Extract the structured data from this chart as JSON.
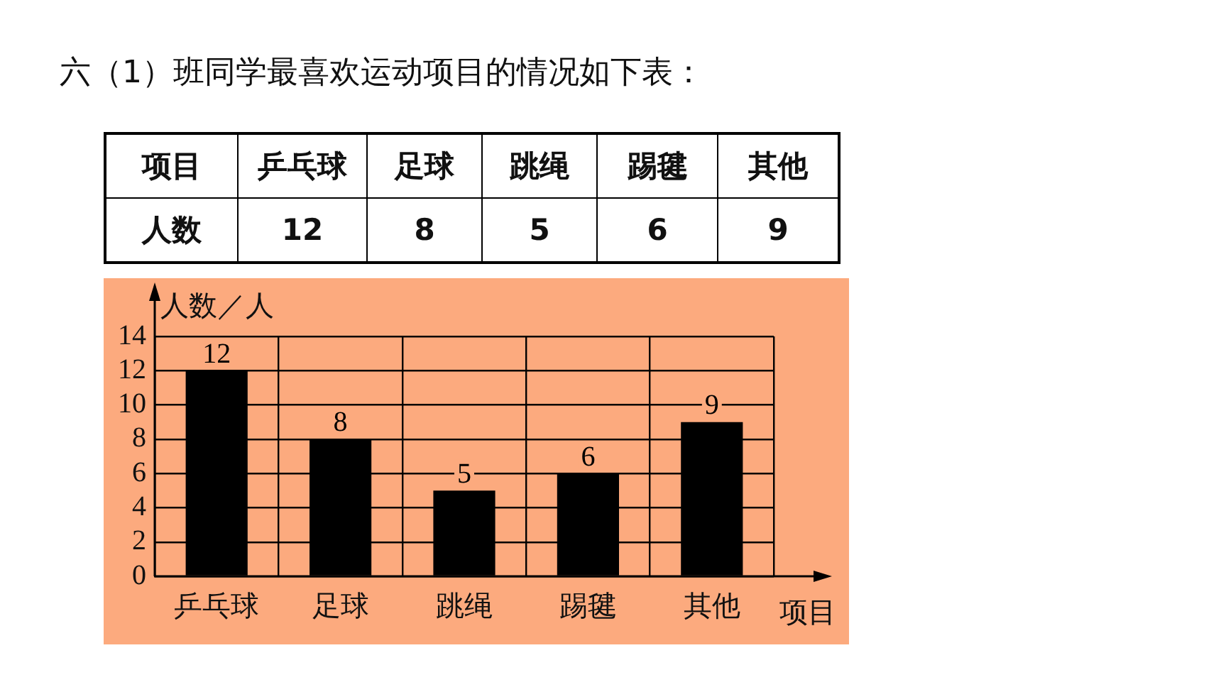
{
  "chart_data": [
    {
      "type": "other",
      "title": "六（1）班同学最喜欢运动项目的情况如下表：",
      "xlabel": "项目",
      "ylabel": "人数",
      "categories": [
        "乒乓球",
        "足球",
        "跳绳",
        "踢毽",
        "其他"
      ],
      "values": [
        12,
        8,
        5,
        6,
        9
      ],
      "data_labels": true
    },
    {
      "type": "bar",
      "categories": [
        "乒乓球",
        "足球",
        "跳绳",
        "踢毽",
        "其他"
      ],
      "values": [
        12,
        8,
        5,
        6,
        9
      ],
      "color": "#000000",
      "xlabel": "项目",
      "ylabel": "人数／人",
      "ylim": [
        0,
        14
      ],
      "yticks": [
        0,
        2,
        4,
        6,
        8,
        10,
        12,
        14
      ],
      "grid": true,
      "data_labels": true
    }
  ]
}
